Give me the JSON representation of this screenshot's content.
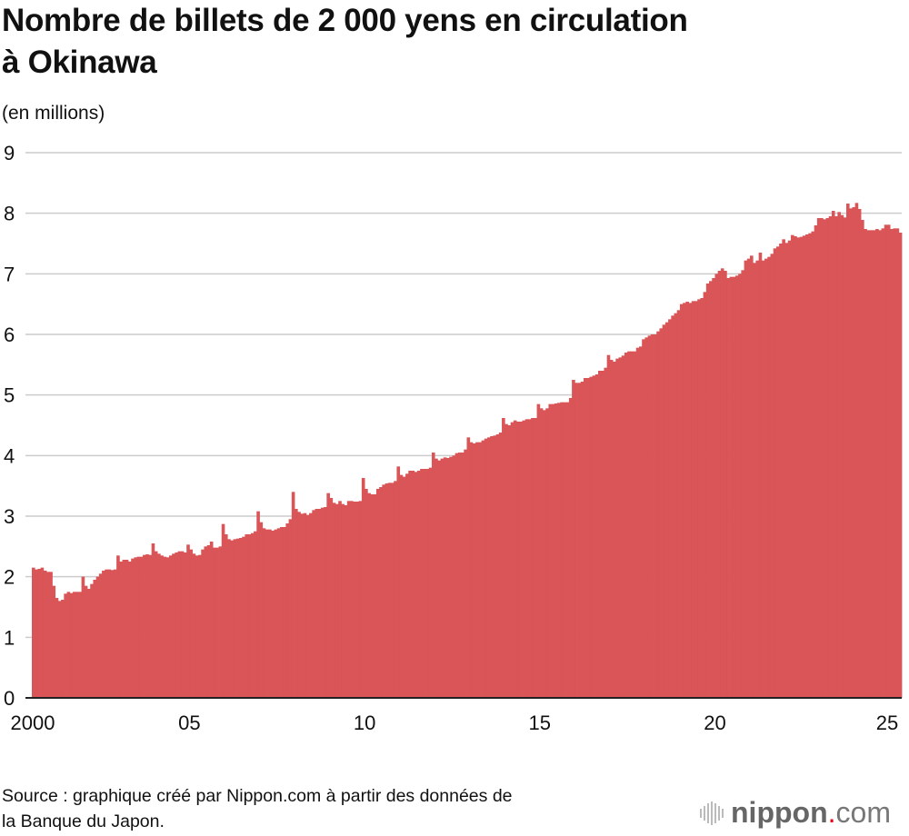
{
  "chart_data": {
    "type": "bar",
    "title": "Nombre de billets de 2 000 yens en circulation à Okinawa",
    "ylabel": "(en millions)",
    "xlabel": "",
    "ylim": [
      0,
      9
    ],
    "yticks": [
      "0",
      "1",
      "2",
      "3",
      "4",
      "5",
      "6",
      "7",
      "8",
      "9"
    ],
    "xticks": [
      "2000",
      "05",
      "10",
      "15",
      "20",
      "25"
    ],
    "grid": true,
    "frequency": "monthly",
    "start": "2000-07",
    "end": "2025-04",
    "color": "#d95557",
    "values_by_year": {
      "2000": [
        2.15,
        2.12,
        2.13,
        2.15,
        2.1,
        2.08
      ],
      "2001": [
        2.08,
        1.85,
        1.65,
        1.6,
        1.62,
        1.72,
        1.75,
        1.73,
        1.75,
        1.75,
        1.75,
        2.0
      ],
      "2002": [
        1.85,
        1.8,
        1.88,
        1.95,
        2.0,
        2.05,
        2.1,
        2.12,
        2.12,
        2.11,
        2.12,
        2.35
      ],
      "2003": [
        2.25,
        2.28,
        2.28,
        2.25,
        2.3,
        2.32,
        2.33,
        2.33,
        2.36,
        2.37,
        2.36,
        2.55
      ],
      "2004": [
        2.42,
        2.38,
        2.35,
        2.33,
        2.32,
        2.35,
        2.38,
        2.4,
        2.42,
        2.42,
        2.4,
        2.53
      ],
      "2005": [
        2.45,
        2.38,
        2.35,
        2.36,
        2.45,
        2.5,
        2.52,
        2.58,
        2.48,
        2.48,
        2.5,
        2.87
      ],
      "2006": [
        2.7,
        2.62,
        2.6,
        2.62,
        2.63,
        2.64,
        2.66,
        2.7,
        2.7,
        2.72,
        2.75,
        3.08
      ],
      "2007": [
        2.9,
        2.8,
        2.78,
        2.78,
        2.76,
        2.78,
        2.8,
        2.82,
        2.82,
        2.88,
        2.95,
        3.4
      ],
      "2008": [
        3.12,
        3.07,
        3.04,
        3.05,
        3.02,
        3.05,
        3.1,
        3.12,
        3.12,
        3.14,
        3.15,
        3.38
      ],
      "2009": [
        3.3,
        3.22,
        3.2,
        3.25,
        3.2,
        3.18,
        3.25,
        3.25,
        3.24,
        3.24,
        3.25,
        3.63
      ],
      "2010": [
        3.45,
        3.38,
        3.36,
        3.36,
        3.45,
        3.48,
        3.52,
        3.54,
        3.55,
        3.55,
        3.58,
        3.82
      ],
      "2011": [
        3.68,
        3.65,
        3.7,
        3.75,
        3.75,
        3.73,
        3.75,
        3.78,
        3.78,
        3.78,
        3.8,
        4.05
      ],
      "2012": [
        3.95,
        3.92,
        3.95,
        3.97,
        3.96,
        3.98,
        4.0,
        4.04,
        4.05,
        4.05,
        4.1,
        4.3
      ],
      "2013": [
        4.22,
        4.2,
        4.22,
        4.22,
        4.25,
        4.28,
        4.3,
        4.32,
        4.33,
        4.35,
        4.38,
        4.62
      ],
      "2014": [
        4.52,
        4.5,
        4.55,
        4.58,
        4.56,
        4.56,
        4.58,
        4.6,
        4.6,
        4.62,
        4.62,
        4.85
      ],
      "2015": [
        4.78,
        4.75,
        4.78,
        4.85,
        4.85,
        4.86,
        4.87,
        4.88,
        4.88,
        4.88,
        4.95,
        5.25
      ],
      "2016": [
        5.2,
        5.2,
        5.22,
        5.28,
        5.28,
        5.3,
        5.32,
        5.34,
        5.4,
        5.4,
        5.45,
        5.66
      ],
      "2017": [
        5.58,
        5.55,
        5.6,
        5.62,
        5.65,
        5.7,
        5.72,
        5.72,
        5.72,
        5.78,
        5.8,
        5.92
      ],
      "2018": [
        5.95,
        5.98,
        6.0,
        6.0,
        6.05,
        6.1,
        6.16,
        6.2,
        6.25,
        6.31,
        6.35,
        6.4
      ],
      "2019": [
        6.5,
        6.52,
        6.54,
        6.52,
        6.55,
        6.55,
        6.58,
        6.6,
        6.7,
        6.84,
        6.88,
        6.93
      ],
      "2020": [
        7.0,
        7.05,
        7.09,
        7.05,
        6.93,
        6.95,
        6.95,
        6.97,
        7.0,
        7.06,
        7.22,
        7.25
      ],
      "2021": [
        7.3,
        7.18,
        7.22,
        7.35,
        7.22,
        7.25,
        7.28,
        7.33,
        7.42,
        7.45,
        7.5,
        7.57
      ],
      "2022": [
        7.51,
        7.55,
        7.64,
        7.62,
        7.6,
        7.61,
        7.63,
        7.65,
        7.67,
        7.7,
        7.8,
        7.92
      ],
      "2023": [
        7.92,
        7.9,
        7.92,
        7.95,
        8.04,
        7.95,
        8.02,
        7.97,
        7.93,
        8.16,
        8.08,
        8.1
      ],
      "2024": [
        8.17,
        8.07,
        7.89,
        7.74,
        7.72,
        7.72,
        7.72,
        7.74,
        7.72,
        7.75,
        7.81,
        7.81
      ],
      "2025": [
        7.74,
        7.75,
        7.75,
        7.68
      ]
    }
  },
  "header": {
    "title_line1": "Nombre de billets de 2 000 yens en circulation",
    "title_line2": "à Okinawa",
    "unit": "(en millions)"
  },
  "footer": {
    "source_line1": "Source : graphique créé par Nippon.com à partir des données de",
    "source_line2": "la Banque du Japon.",
    "logo": {
      "name": "nippon",
      "dot": ".",
      "suffix": "com",
      "accent": "#e60012"
    }
  }
}
